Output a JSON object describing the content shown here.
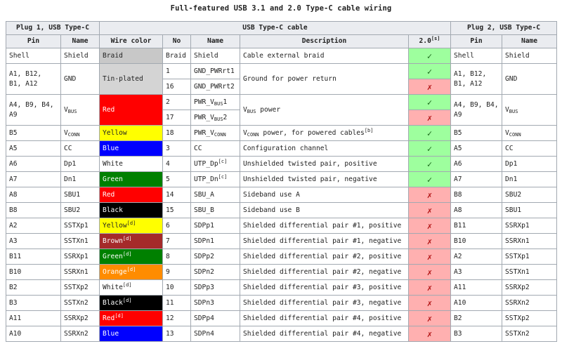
{
  "caption": "Full-featured USB 3.1 and 2.0 Type-C cable wiring",
  "headers": {
    "plug1": "Plug 1, USB Type-C",
    "cable": "USB Type-C cable",
    "plug2": "Plug 2, USB Type-C",
    "pin": "Pin",
    "name": "Name",
    "wire_color": "Wire color",
    "no": "No",
    "description": "Description",
    "usb2": "2.0",
    "usb2_note": "[s]"
  },
  "rows": [
    {
      "pin1": "Shell",
      "name1": "Shield",
      "wire": "Braid",
      "wire_bg": "#c8c8c8",
      "wire_fg": "#222222",
      "wire_note": "",
      "no": "Braid",
      "cname": "Shield",
      "cname_sub": "",
      "cname_note": "",
      "desc": "Cable external braid",
      "desc_sub": "",
      "desc_tail": "",
      "desc_note": "",
      "usb2": "✓",
      "pin2": "Shell",
      "name2": "Shield",
      "name2_sub": ""
    },
    {
      "pin1": "A1, B12, B1, A12",
      "name1": "GND",
      "wire": "Tin-plated",
      "wire_bg": "#d4d4d4",
      "wire_fg": "#222222",
      "wire_note": "",
      "no": "1",
      "cname": "GND_PWRrt1",
      "cname_sub": "",
      "cname_note": "",
      "desc": "Ground for power return",
      "desc_sub": "",
      "desc_tail": "",
      "desc_note": "",
      "usb2": "✓",
      "pin2": "A1, B12, B1, A12",
      "name2": "GND",
      "name2_sub": ""
    },
    {
      "no": "16",
      "cname": "GND_PWRrt2",
      "cname_sub": "",
      "cname_note": "",
      "usb2": "✗"
    },
    {
      "pin1": "A4, B9, B4, A9",
      "name1": "V",
      "name1_sub": "BUS",
      "wire": "Red",
      "wire_bg": "#ff0000",
      "wire_fg": "#ffffff",
      "wire_note": "",
      "no": "2",
      "cname": "PWR_V",
      "cname_sub": "BUS",
      "cname_tail": "1",
      "cname_note": "",
      "desc": "V",
      "desc_sub": "BUS",
      "desc_tail": " power",
      "desc_note": "",
      "usb2": "✓",
      "pin2": "A4, B9, B4, A9",
      "name2": "V",
      "name2_sub": "BUS"
    },
    {
      "no": "17",
      "cname": "PWR_V",
      "cname_sub": "BUS",
      "cname_tail": "2",
      "cname_note": "",
      "usb2": "✗"
    },
    {
      "pin1": "B5",
      "name1": "V",
      "name1_sub": "CONN",
      "wire": "Yellow",
      "wire_bg": "#ffff00",
      "wire_fg": "#222222",
      "wire_note": "",
      "no": "18",
      "cname": "PWR_V",
      "cname_sub": "CONN",
      "cname_tail": "",
      "cname_note": "",
      "desc": "V",
      "desc_sub": "CONN",
      "desc_tail": " power, for powered cables",
      "desc_note": "[b]",
      "usb2": "✓",
      "pin2": "B5",
      "name2": "V",
      "name2_sub": "CONN"
    },
    {
      "pin1": "A5",
      "name1": "CC",
      "wire": "Blue",
      "wire_bg": "#0000ff",
      "wire_fg": "#ffffff",
      "wire_note": "",
      "no": "3",
      "cname": "CC",
      "cname_sub": "",
      "cname_note": "",
      "desc": "Configuration channel",
      "desc_sub": "",
      "desc_tail": "",
      "desc_note": "",
      "usb2": "✓",
      "pin2": "A5",
      "name2": "CC",
      "name2_sub": ""
    },
    {
      "pin1": "A6",
      "name1": "Dp1",
      "wire": "White",
      "wire_bg": "#ffffff",
      "wire_fg": "#222222",
      "wire_note": "",
      "no": "4",
      "cname": "UTP_Dp",
      "cname_sub": "",
      "cname_note": "[c]",
      "desc": "Unshielded twisted pair, positive",
      "desc_sub": "",
      "desc_tail": "",
      "desc_note": "",
      "usb2": "✓",
      "pin2": "A6",
      "name2": "Dp1",
      "name2_sub": ""
    },
    {
      "pin1": "A7",
      "name1": "Dn1",
      "wire": "Green",
      "wire_bg": "#008000",
      "wire_fg": "#ffffff",
      "wire_note": "",
      "no": "5",
      "cname": "UTP_Dn",
      "cname_sub": "",
      "cname_note": "[c]",
      "desc": "Unshielded twisted pair, negative",
      "desc_sub": "",
      "desc_tail": "",
      "desc_note": "",
      "usb2": "✓",
      "pin2": "A7",
      "name2": "Dn1",
      "name2_sub": ""
    },
    {
      "pin1": "A8",
      "name1": "SBU1",
      "wire": "Red",
      "wire_bg": "#ff0000",
      "wire_fg": "#ffffff",
      "wire_note": "",
      "no": "14",
      "cname": "SBU_A",
      "cname_sub": "",
      "cname_note": "",
      "desc": "Sideband use A",
      "desc_sub": "",
      "desc_tail": "",
      "desc_note": "",
      "usb2": "✗",
      "pin2": "B8",
      "name2": "SBU2",
      "name2_sub": ""
    },
    {
      "pin1": "B8",
      "name1": "SBU2",
      "wire": "Black",
      "wire_bg": "#000000",
      "wire_fg": "#ffffff",
      "wire_note": "",
      "no": "15",
      "cname": "SBU_B",
      "cname_sub": "",
      "cname_note": "",
      "desc": "Sideband use B",
      "desc_sub": "",
      "desc_tail": "",
      "desc_note": "",
      "usb2": "✗",
      "pin2": "A8",
      "name2": "SBU1",
      "name2_sub": ""
    },
    {
      "pin1": "A2",
      "name1": "SSTXp1",
      "wire": "Yellow",
      "wire_bg": "#ffff00",
      "wire_fg": "#222222",
      "wire_note": "[d]",
      "no": "6",
      "cname": "SDPp1",
      "cname_sub": "",
      "cname_note": "",
      "desc": "Shielded differential pair #1, positive",
      "desc_sub": "",
      "desc_tail": "",
      "desc_note": "",
      "usb2": "✗",
      "pin2": "B11",
      "name2": "SSRXp1",
      "name2_sub": ""
    },
    {
      "pin1": "A3",
      "name1": "SSTXn1",
      "wire": "Brown",
      "wire_bg": "#a52a2a",
      "wire_fg": "#ffffff",
      "wire_note": "[d]",
      "no": "7",
      "cname": "SDPn1",
      "cname_sub": "",
      "cname_note": "",
      "desc": "Shielded differential pair #1, negative",
      "desc_sub": "",
      "desc_tail": "",
      "desc_note": "",
      "usb2": "✗",
      "pin2": "B10",
      "name2": "SSRXn1",
      "name2_sub": ""
    },
    {
      "pin1": "B11",
      "name1": "SSRXp1",
      "wire": "Green",
      "wire_bg": "#008000",
      "wire_fg": "#ffffff",
      "wire_note": "[d]",
      "no": "8",
      "cname": "SDPp2",
      "cname_sub": "",
      "cname_note": "",
      "desc": "Shielded differential pair #2, positive",
      "desc_sub": "",
      "desc_tail": "",
      "desc_note": "",
      "usb2": "✗",
      "pin2": "A2",
      "name2": "SSTXp1",
      "name2_sub": ""
    },
    {
      "pin1": "B10",
      "name1": "SSRXn1",
      "wire": "Orange",
      "wire_bg": "#ff8c00",
      "wire_fg": "#ffffff",
      "wire_note": "[d]",
      "no": "9",
      "cname": "SDPn2",
      "cname_sub": "",
      "cname_note": "",
      "desc": "Shielded differential pair #2, negative",
      "desc_sub": "",
      "desc_tail": "",
      "desc_note": "",
      "usb2": "✗",
      "pin2": "A3",
      "name2": "SSTXn1",
      "name2_sub": ""
    },
    {
      "pin1": "B2",
      "name1": "SSTXp2",
      "wire": "White",
      "wire_bg": "#ffffff",
      "wire_fg": "#222222",
      "wire_note": "[d]",
      "no": "10",
      "cname": "SDPp3",
      "cname_sub": "",
      "cname_note": "",
      "desc": "Shielded differential pair #3, positive",
      "desc_sub": "",
      "desc_tail": "",
      "desc_note": "",
      "usb2": "✗",
      "pin2": "A11",
      "name2": "SSRXp2",
      "name2_sub": ""
    },
    {
      "pin1": "B3",
      "name1": "SSTXn2",
      "wire": "Black",
      "wire_bg": "#000000",
      "wire_fg": "#ffffff",
      "wire_note": "[d]",
      "no": "11",
      "cname": "SDPn3",
      "cname_sub": "",
      "cname_note": "",
      "desc": "Shielded differential pair #3, negative",
      "desc_sub": "",
      "desc_tail": "",
      "desc_note": "",
      "usb2": "✗",
      "pin2": "A10",
      "name2": "SSRXn2",
      "name2_sub": ""
    },
    {
      "pin1": "A11",
      "name1": "SSRXp2",
      "wire": "Red",
      "wire_bg": "#ff0000",
      "wire_fg": "#ffffff",
      "wire_note": "[d]",
      "no": "12",
      "cname": "SDPp4",
      "cname_sub": "",
      "cname_note": "",
      "desc": "Shielded differential pair #4, positive",
      "desc_sub": "",
      "desc_tail": "",
      "desc_note": "",
      "usb2": "✗",
      "pin2": "B2",
      "name2": "SSTXp2",
      "name2_sub": ""
    },
    {
      "pin1": "A10",
      "name1": "SSRXn2",
      "wire": "Blue",
      "wire_bg": "#0000ff",
      "wire_fg": "#ffffff",
      "wire_note": "",
      "no": "13",
      "cname": "SDPn4",
      "cname_sub": "",
      "cname_note": "",
      "desc": "Shielded differential pair #4, negative",
      "desc_sub": "",
      "desc_tail": "",
      "desc_note": "",
      "usb2": "✗",
      "pin2": "B3",
      "name2": "SSTXn2",
      "name2_sub": ""
    }
  ]
}
